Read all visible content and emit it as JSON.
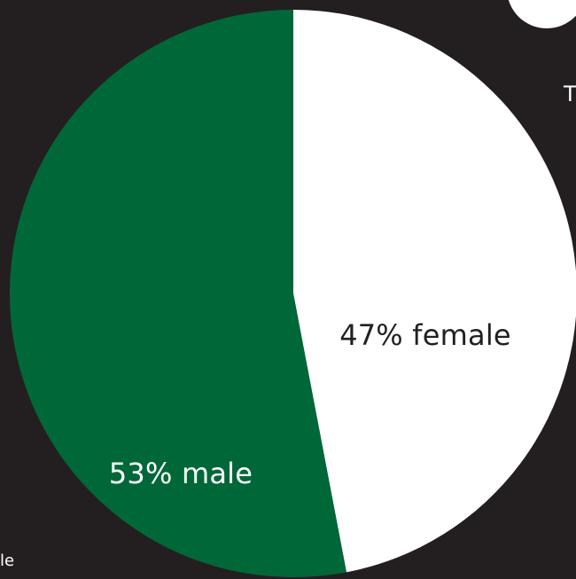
{
  "colors": {
    "background": "#231f20",
    "male": "#006838",
    "female": "#ffffff",
    "male_label": "#ffffff",
    "female_label": "#231f20"
  },
  "edge_text": {
    "right": "T",
    "bottom": "le"
  },
  "chart_data": {
    "type": "pie",
    "title": "",
    "start_angle_deg": 0,
    "direction": "clockwise",
    "slices": [
      {
        "name": "female",
        "value": 47,
        "color": "#ffffff",
        "label": "47% female"
      },
      {
        "name": "male",
        "value": 53,
        "color": "#006838",
        "label": "53% male"
      }
    ]
  }
}
